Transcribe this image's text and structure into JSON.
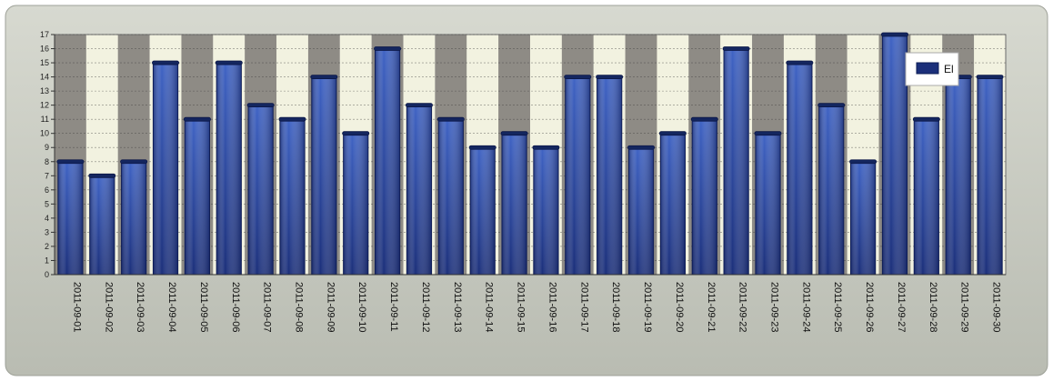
{
  "chart_data": {
    "type": "bar",
    "categories": [
      "2011-09-01",
      "2011-09-02",
      "2011-09-03",
      "2011-09-04",
      "2011-09-05",
      "2011-09-06",
      "2011-09-07",
      "2011-09-08",
      "2011-09-09",
      "2011-09-10",
      "2011-09-11",
      "2011-09-12",
      "2011-09-13",
      "2011-09-14",
      "2011-09-15",
      "2011-09-16",
      "2011-09-17",
      "2011-09-18",
      "2011-09-19",
      "2011-09-20",
      "2011-09-21",
      "2011-09-22",
      "2011-09-23",
      "2011-09-24",
      "2011-09-25",
      "2011-09-26",
      "2011-09-27",
      "2011-09-28",
      "2011-09-29",
      "2011-09-30"
    ],
    "series": [
      {
        "name": "El",
        "values": [
          8,
          7,
          8,
          15,
          11,
          15,
          12,
          11,
          14,
          10,
          16,
          12,
          11,
          9,
          10,
          9,
          14,
          14,
          9,
          10,
          11,
          16,
          10,
          15,
          12,
          8,
          17,
          11,
          14,
          14
        ]
      }
    ],
    "yticks": [
      "0",
      "1",
      "2",
      "3",
      "4",
      "5",
      "6",
      "7",
      "8",
      "9",
      "10",
      "11",
      "12",
      "13",
      "14",
      "15",
      "16",
      "17"
    ],
    "ylim": [
      0,
      17
    ],
    "grid": true,
    "legend": "top-right",
    "colors": {
      "bar_dark": "#1b2f7a",
      "bar_light": "#3f63c4",
      "band_dark": "#8e8b85",
      "band_light": "#f2f2e0",
      "frame_bg": "#c9ccc3",
      "plot_border": "#6b6b6b"
    }
  }
}
